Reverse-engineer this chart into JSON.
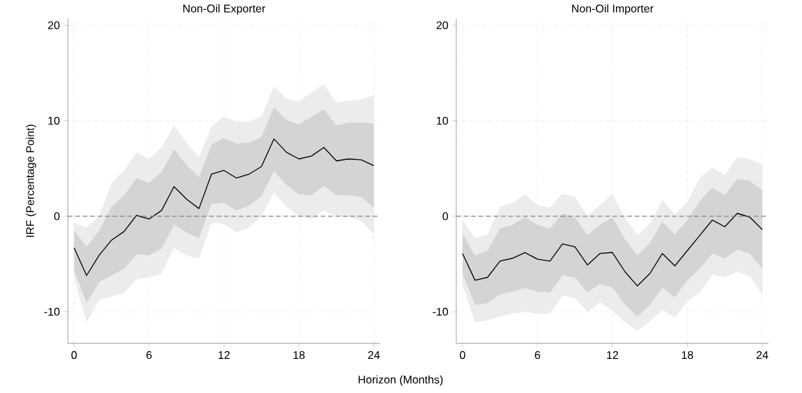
{
  "chart_data": [
    {
      "type": "line",
      "title": "Non-Oil Exporter",
      "ylabel": "IRF (Percentage Point)",
      "xlabel": "Horizon (Months)",
      "x": [
        0,
        1,
        2,
        3,
        4,
        5,
        6,
        7,
        8,
        9,
        10,
        11,
        12,
        13,
        14,
        15,
        16,
        17,
        18,
        19,
        20,
        21,
        22,
        23,
        24
      ],
      "xlim": [
        -0.5,
        24.5
      ],
      "ylim": [
        -13.3,
        20.7
      ],
      "xticks": [
        0,
        6,
        12,
        18,
        24
      ],
      "yticks": [
        -10,
        0,
        10,
        20
      ],
      "grid": true,
      "ref_lines": [
        {
          "axis": "y",
          "value": 0,
          "color": "#808080",
          "line_style": "dashed"
        }
      ],
      "series": [
        {
          "color": "#ececec",
          "values": [
            null,
            null,
            null,
            null,
            null,
            null,
            null,
            null,
            null,
            null,
            null,
            null,
            null,
            null,
            null,
            null,
            null,
            null,
            null,
            null,
            null,
            null,
            null,
            null,
            null
          ],
          "lower": [
            -6.5,
            -11.1,
            -8.8,
            -8.4,
            -8.0,
            -6.6,
            -6.4,
            -6.0,
            -3.3,
            -4.1,
            -4.4,
            -0.7,
            -0.8,
            -1.7,
            -1.2,
            0.0,
            2.5,
            1.0,
            0.0,
            -0.3,
            0.6,
            0.0,
            -0.1,
            -0.5,
            -1.9
          ],
          "upper": [
            -0.7,
            -1.2,
            0.0,
            3.5,
            4.8,
            6.7,
            6.0,
            7.2,
            9.5,
            7.7,
            6.2,
            9.4,
            10.4,
            9.9,
            9.9,
            10.4,
            13.6,
            12.3,
            12.0,
            13.0,
            13.8,
            11.9,
            12.1,
            12.2,
            12.7
          ]
        },
        {
          "color": "#d4d4d4",
          "values": [
            null,
            null,
            null,
            null,
            null,
            null,
            null,
            null,
            null,
            null,
            null,
            null,
            null,
            null,
            null,
            null,
            null,
            null,
            null,
            null,
            null,
            null,
            null,
            null,
            null
          ],
          "lower": [
            -5.7,
            -9.1,
            -6.9,
            -6.2,
            -5.5,
            -4.0,
            -4.1,
            -3.4,
            -0.9,
            -1.7,
            -2.3,
            1.3,
            1.4,
            0.6,
            1.1,
            2.1,
            4.7,
            3.3,
            2.3,
            2.2,
            3.2,
            2.2,
            2.2,
            2.0,
            0.9
          ],
          "upper": [
            -1.5,
            -3.2,
            -1.5,
            1.0,
            2.2,
            4.0,
            3.5,
            4.6,
            7.0,
            5.4,
            4.1,
            7.5,
            8.2,
            7.6,
            7.7,
            8.3,
            11.4,
            10.1,
            9.6,
            10.4,
            11.2,
            9.5,
            9.8,
            9.8,
            9.7
          ]
        },
        {
          "color": "#000000",
          "values": [
            -3.3,
            -6.2,
            -4.1,
            -2.5,
            -1.6,
            0.1,
            -0.3,
            0.6,
            3.1,
            1.8,
            0.8,
            4.4,
            4.8,
            4.0,
            4.4,
            5.2,
            8.1,
            6.7,
            6.0,
            6.3,
            7.2,
            5.8,
            6.0,
            5.9,
            5.3
          ]
        }
      ]
    },
    {
      "type": "line",
      "title": "Non-Oil Importer",
      "x": [
        0,
        1,
        2,
        3,
        4,
        5,
        6,
        7,
        8,
        9,
        10,
        11,
        12,
        13,
        14,
        15,
        16,
        17,
        18,
        19,
        20,
        21,
        22,
        23,
        24
      ],
      "xlim": [
        -0.5,
        24.5
      ],
      "ylim": [
        -13.3,
        20.7
      ],
      "xticks": [
        0,
        6,
        12,
        18,
        24
      ],
      "yticks": [
        -10,
        0,
        10,
        20
      ],
      "grid": true,
      "ref_lines": [
        {
          "axis": "y",
          "value": 0,
          "color": "#808080",
          "line_style": "dashed"
        }
      ],
      "series": [
        {
          "color": "#ececec",
          "values": [
            null,
            null,
            null,
            null,
            null,
            null,
            null,
            null,
            null,
            null,
            null,
            null,
            null,
            null,
            null,
            null,
            null,
            null,
            null,
            null,
            null,
            null,
            null,
            null,
            null
          ],
          "lower": [
            -7.2,
            -11.1,
            -10.9,
            -10.5,
            -10.2,
            -10.0,
            -10.2,
            -10.2,
            -8.3,
            -8.6,
            -10.0,
            -9.0,
            -9.9,
            -11.1,
            -12.0,
            -11.0,
            -9.8,
            -10.6,
            -8.9,
            -8.0,
            -6.1,
            -6.4,
            -5.8,
            -6.3,
            -8.2
          ],
          "upper": [
            -0.4,
            -2.3,
            -1.9,
            1.0,
            1.4,
            2.3,
            1.2,
            0.9,
            2.4,
            2.0,
            0.0,
            1.2,
            2.3,
            -0.2,
            -2.0,
            -0.8,
            1.7,
            0.2,
            1.5,
            4.0,
            5.1,
            4.3,
            6.2,
            6.0,
            5.4
          ]
        },
        {
          "color": "#d4d4d4",
          "values": [
            null,
            null,
            null,
            null,
            null,
            null,
            null,
            null,
            null,
            null,
            null,
            null,
            null,
            null,
            null,
            null,
            null,
            null,
            null,
            null,
            null,
            null,
            null,
            null,
            null
          ],
          "lower": [
            -6.0,
            -9.3,
            -9.1,
            -8.2,
            -7.9,
            -7.5,
            -7.9,
            -8.0,
            -6.2,
            -6.4,
            -8.0,
            -7.1,
            -7.5,
            -9.2,
            -10.5,
            -9.3,
            -7.5,
            -8.5,
            -6.7,
            -5.5,
            -3.9,
            -4.4,
            -3.5,
            -3.9,
            -5.5
          ],
          "upper": [
            -1.8,
            -4.1,
            -3.6,
            -1.3,
            -0.9,
            -0.1,
            -0.9,
            -1.3,
            0.3,
            -0.1,
            -2.0,
            -0.9,
            -0.1,
            -2.4,
            -4.1,
            -2.8,
            -0.6,
            -1.9,
            -0.4,
            1.6,
            3.0,
            2.2,
            3.9,
            3.7,
            2.7
          ]
        },
        {
          "color": "#000000",
          "values": [
            -3.9,
            -6.7,
            -6.4,
            -4.7,
            -4.4,
            -3.8,
            -4.5,
            -4.7,
            -2.9,
            -3.2,
            -5.1,
            -3.9,
            -3.8,
            -5.8,
            -7.3,
            -6.0,
            -3.9,
            -5.2,
            -3.6,
            -2.0,
            -0.4,
            -1.1,
            0.3,
            -0.1,
            -1.4
          ]
        }
      ]
    }
  ]
}
